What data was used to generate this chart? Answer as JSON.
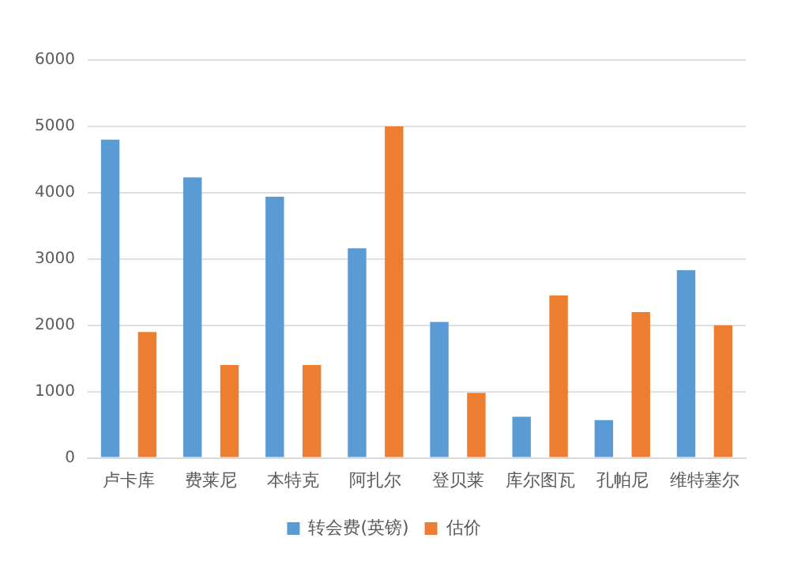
{
  "chart_data": {
    "type": "bar",
    "categories": [
      "卢卡库",
      "费莱尼",
      "本特克",
      "阿扎尔",
      "登贝莱",
      "库尔图瓦",
      "孔帕尼",
      "维特塞尔"
    ],
    "series": [
      {
        "name": "转会费(英镑)",
        "color": "#5b9bd5",
        "values": [
          4800,
          4230,
          3940,
          3160,
          2050,
          620,
          570,
          2830
        ]
      },
      {
        "name": "估价",
        "color": "#ed7d31",
        "values": [
          1900,
          1400,
          1400,
          5000,
          980,
          2450,
          2200,
          2000
        ]
      }
    ],
    "ylim": [
      0,
      6000
    ],
    "yticks": [
      0,
      1000,
      2000,
      3000,
      4000,
      5000,
      6000
    ],
    "grid": "y",
    "legend": "bottom"
  }
}
